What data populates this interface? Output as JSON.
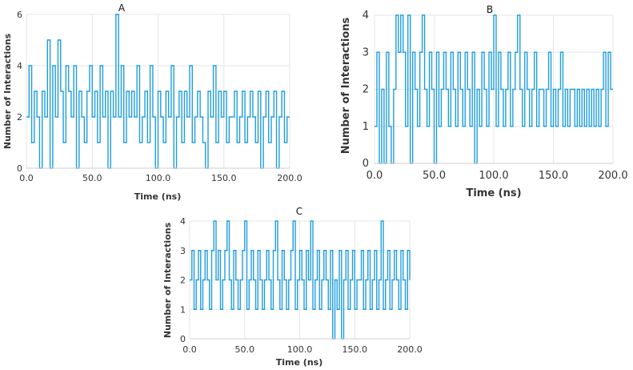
{
  "colors": {
    "series": "#1f9de0",
    "grid": "#e6e6e6",
    "text": "#333333"
  },
  "chart_data": [
    {
      "type": "line",
      "panel_label": "A",
      "xlabel": "Time (ns)",
      "ylabel": "Number of Interactions",
      "xlim": [
        0,
        200
      ],
      "ylim": [
        0,
        6
      ],
      "xticks": [
        0,
        50,
        100,
        150,
        200
      ],
      "xtick_labels": [
        "0.0",
        "50.0",
        "100.0",
        "150.0",
        "200.0"
      ],
      "yticks": [
        0,
        2,
        4,
        6
      ],
      "ytick_labels": [
        "0",
        "2",
        "4",
        "6"
      ],
      "grid": true,
      "legend": "none",
      "series": [
        {
          "x": [
            0,
            2,
            4,
            6,
            8,
            10,
            12,
            14,
            16,
            18,
            20,
            22,
            24,
            26,
            28,
            30,
            32,
            34,
            36,
            38,
            40,
            42,
            44,
            46,
            48,
            50,
            52,
            54,
            56,
            58,
            60,
            62,
            64,
            66,
            68,
            70,
            72,
            74,
            76,
            78,
            80,
            82,
            84,
            86,
            88,
            90,
            92,
            94,
            96,
            98,
            100,
            102,
            104,
            106,
            108,
            110,
            112,
            114,
            116,
            118,
            120,
            122,
            124,
            126,
            128,
            130,
            132,
            134,
            136,
            138,
            140,
            142,
            144,
            146,
            148,
            150,
            152,
            154,
            156,
            158,
            160,
            162,
            164,
            166,
            168,
            170,
            172,
            174,
            176,
            178,
            180,
            182,
            184,
            186,
            188,
            190,
            192,
            194,
            196,
            198,
            200
          ],
          "values": [
            2,
            4,
            1,
            3,
            2,
            0,
            3,
            2,
            5,
            0,
            4,
            2,
            5,
            3,
            1,
            4,
            3,
            2,
            4,
            0,
            3,
            2,
            1,
            3,
            4,
            2,
            3,
            1,
            4,
            2,
            3,
            0,
            3,
            2,
            6,
            2,
            4,
            1,
            3,
            2,
            3,
            2,
            4,
            1,
            2,
            3,
            1,
            4,
            2,
            0,
            3,
            2,
            1,
            3,
            2,
            4,
            0,
            2,
            3,
            1,
            3,
            2,
            4,
            1,
            2,
            3,
            2,
            1,
            0,
            3,
            2,
            4,
            1,
            3,
            2,
            3,
            1,
            2,
            2,
            3,
            1,
            2,
            3,
            1,
            2,
            3,
            2,
            1,
            3,
            0,
            2,
            3,
            1,
            2,
            3,
            0,
            2,
            3,
            1,
            2,
            2
          ]
        }
      ]
    },
    {
      "type": "line",
      "panel_label": "B",
      "xlabel": "Time (ns)",
      "ylabel": "Number of Interactions",
      "xlim": [
        0,
        200
      ],
      "ylim": [
        0,
        4
      ],
      "xticks": [
        0,
        50,
        100,
        150,
        200
      ],
      "xtick_labels": [
        "0.0",
        "50.0",
        "100.0",
        "150.0",
        "200.0"
      ],
      "yticks": [
        0,
        1,
        2,
        3,
        4
      ],
      "ytick_labels": [
        "0",
        "1",
        "2",
        "3",
        "4"
      ],
      "grid": true,
      "legend": "none",
      "series": [
        {
          "x": [
            0,
            2,
            4,
            6,
            8,
            10,
            12,
            14,
            16,
            18,
            20,
            22,
            24,
            26,
            28,
            30,
            32,
            34,
            36,
            38,
            40,
            42,
            44,
            46,
            48,
            50,
            52,
            54,
            56,
            58,
            60,
            62,
            64,
            66,
            68,
            70,
            72,
            74,
            76,
            78,
            80,
            82,
            84,
            86,
            88,
            90,
            92,
            94,
            96,
            98,
            100,
            102,
            104,
            106,
            108,
            110,
            112,
            114,
            116,
            118,
            120,
            122,
            124,
            126,
            128,
            130,
            132,
            134,
            136,
            138,
            140,
            142,
            144,
            146,
            148,
            150,
            152,
            154,
            156,
            158,
            160,
            162,
            164,
            166,
            168,
            170,
            172,
            174,
            176,
            178,
            180,
            182,
            184,
            186,
            188,
            190,
            192,
            194,
            196,
            198,
            200
          ],
          "values": [
            1,
            3,
            0,
            2,
            0,
            3,
            1,
            0,
            2,
            4,
            3,
            4,
            3,
            1,
            4,
            0,
            3,
            2,
            1,
            3,
            4,
            2,
            1,
            3,
            2,
            0,
            3,
            1,
            2,
            3,
            2,
            1,
            3,
            2,
            1,
            3,
            2,
            1,
            3,
            2,
            1,
            3,
            0,
            2,
            1,
            3,
            2,
            1,
            3,
            2,
            4,
            1,
            3,
            2,
            1,
            2,
            3,
            1,
            2,
            3,
            4,
            2,
            1,
            3,
            2,
            1,
            2,
            3,
            1,
            2,
            2,
            1,
            2,
            3,
            1,
            2,
            1,
            2,
            3,
            1,
            2,
            1,
            2,
            2,
            1,
            2,
            1,
            2,
            1,
            2,
            1,
            2,
            1,
            2,
            1,
            2,
            3,
            1,
            3,
            2,
            2
          ]
        }
      ]
    },
    {
      "type": "line",
      "panel_label": "C",
      "xlabel": "Time (ns)",
      "ylabel": "Number of Interactions",
      "xlim": [
        0,
        200
      ],
      "ylim": [
        0,
        4
      ],
      "xticks": [
        0,
        50,
        100,
        150,
        200
      ],
      "xtick_labels": [
        "0.0",
        "50.0",
        "100.0",
        "150.0",
        "200.0"
      ],
      "yticks": [
        0,
        1,
        2,
        3,
        4
      ],
      "ytick_labels": [
        "0",
        "1",
        "2",
        "3",
        "4"
      ],
      "grid": true,
      "legend": "none",
      "series": [
        {
          "x": [
            0,
            2,
            4,
            6,
            8,
            10,
            12,
            14,
            16,
            18,
            20,
            22,
            24,
            26,
            28,
            30,
            32,
            34,
            36,
            38,
            40,
            42,
            44,
            46,
            48,
            50,
            52,
            54,
            56,
            58,
            60,
            62,
            64,
            66,
            68,
            70,
            72,
            74,
            76,
            78,
            80,
            82,
            84,
            86,
            88,
            90,
            92,
            94,
            96,
            98,
            100,
            102,
            104,
            106,
            108,
            110,
            112,
            114,
            116,
            118,
            120,
            122,
            124,
            126,
            128,
            130,
            132,
            134,
            136,
            138,
            140,
            142,
            144,
            146,
            148,
            150,
            152,
            154,
            156,
            158,
            160,
            162,
            164,
            166,
            168,
            170,
            172,
            174,
            176,
            178,
            180,
            182,
            184,
            186,
            188,
            190,
            192,
            194,
            196,
            198,
            200
          ],
          "values": [
            2,
            3,
            1,
            2,
            3,
            1,
            2,
            3,
            2,
            1,
            3,
            4,
            2,
            3,
            1,
            2,
            3,
            4,
            2,
            1,
            3,
            2,
            1,
            2,
            3,
            4,
            1,
            2,
            3,
            2,
            1,
            3,
            2,
            1,
            2,
            3,
            2,
            1,
            3,
            4,
            2,
            1,
            3,
            2,
            1,
            2,
            3,
            4,
            1,
            2,
            3,
            2,
            1,
            3,
            2,
            4,
            1,
            2,
            3,
            1,
            2,
            3,
            2,
            1,
            3,
            0,
            2,
            1,
            3,
            0,
            2,
            3,
            1,
            2,
            3,
            1,
            2,
            2,
            3,
            1,
            2,
            3,
            1,
            2,
            3,
            1,
            2,
            4,
            1,
            2,
            3,
            1,
            2,
            3,
            2,
            1,
            3,
            2,
            1,
            3,
            2
          ]
        }
      ]
    }
  ]
}
